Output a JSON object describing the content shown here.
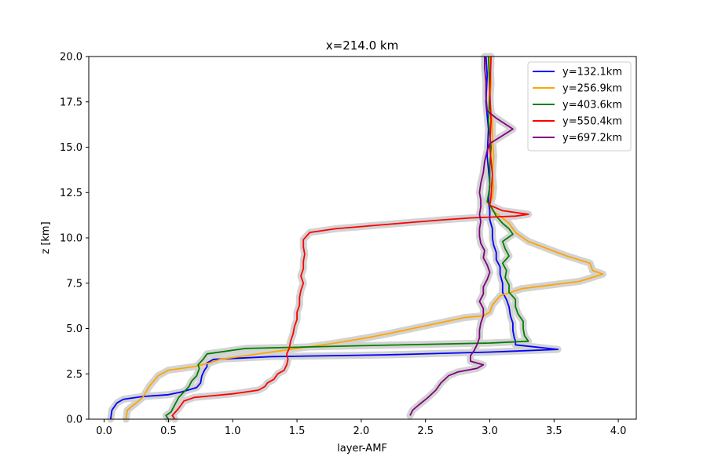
{
  "chart_data": {
    "type": "line",
    "title": "x=214.0 km",
    "xlabel": "layer-AMF",
    "ylabel": "z [km]",
    "xlim": [
      -0.12,
      4.14
    ],
    "ylim": [
      0,
      20
    ],
    "xticks": [
      0.0,
      0.5,
      1.0,
      1.5,
      2.0,
      2.5,
      3.0,
      3.5,
      4.0
    ],
    "xtick_labels": [
      "0.0",
      "0.5",
      "1.0",
      "1.5",
      "2.0",
      "2.5",
      "3.0",
      "3.5",
      "4.0"
    ],
    "yticks": [
      0.0,
      2.5,
      5.0,
      7.5,
      10.0,
      12.5,
      15.0,
      17.5,
      20.0
    ],
    "ytick_labels": [
      "0.0",
      "2.5",
      "5.0",
      "7.5",
      "10.0",
      "12.5",
      "15.0",
      "17.5",
      "20.0"
    ],
    "grid": false,
    "legend_position": "top-right",
    "uncertainty_band_color": "#d3d3d3",
    "series": [
      {
        "name": "y=132.1km",
        "color": "#0000ff",
        "points": [
          [
            0.05,
            0
          ],
          [
            0.06,
            0.5
          ],
          [
            0.1,
            0.9
          ],
          [
            0.15,
            1.1
          ],
          [
            0.3,
            1.25
          ],
          [
            0.5,
            1.35
          ],
          [
            0.6,
            1.5
          ],
          [
            0.65,
            1.6
          ],
          [
            0.72,
            1.75
          ],
          [
            0.75,
            2.0
          ],
          [
            0.76,
            2.4
          ],
          [
            0.78,
            2.7
          ],
          [
            0.8,
            2.9
          ],
          [
            0.8,
            3.1
          ],
          [
            0.85,
            3.3
          ],
          [
            1.3,
            3.45
          ],
          [
            2.2,
            3.55
          ],
          [
            3.0,
            3.7
          ],
          [
            3.53,
            3.85
          ],
          [
            3.2,
            4.1
          ],
          [
            3.2,
            4.3
          ],
          [
            3.19,
            4.5
          ],
          [
            3.18,
            4.9
          ],
          [
            3.18,
            5.3
          ],
          [
            3.16,
            5.7
          ],
          [
            3.15,
            6.2
          ],
          [
            3.13,
            6.6
          ],
          [
            3.1,
            7.0
          ],
          [
            3.1,
            7.5
          ],
          [
            3.08,
            8.0
          ],
          [
            3.08,
            8.4
          ],
          [
            3.05,
            8.8
          ],
          [
            3.05,
            9.2
          ],
          [
            3.03,
            9.6
          ],
          [
            3.02,
            10.0
          ],
          [
            3.02,
            10.5
          ],
          [
            3.0,
            11.0
          ],
          [
            3.0,
            11.5
          ],
          [
            2.99,
            12.0
          ],
          [
            3.0,
            13.0
          ],
          [
            2.98,
            14.5
          ],
          [
            2.99,
            16.0
          ],
          [
            2.97,
            17.5
          ],
          [
            2.98,
            19.0
          ],
          [
            2.97,
            20.0
          ]
        ]
      },
      {
        "name": "y=256.9km",
        "color": "#ffa500",
        "points": [
          [
            0.17,
            0
          ],
          [
            0.18,
            0.5
          ],
          [
            0.25,
            0.9
          ],
          [
            0.3,
            1.2
          ],
          [
            0.35,
            1.8
          ],
          [
            0.42,
            2.4
          ],
          [
            0.5,
            2.7
          ],
          [
            0.7,
            2.9
          ],
          [
            0.82,
            3.1
          ],
          [
            0.9,
            3.3
          ],
          [
            1.1,
            3.5
          ],
          [
            1.4,
            3.8
          ],
          [
            1.8,
            4.2
          ],
          [
            2.05,
            4.5
          ],
          [
            2.2,
            4.7
          ],
          [
            2.4,
            5.0
          ],
          [
            2.6,
            5.3
          ],
          [
            2.8,
            5.6
          ],
          [
            2.95,
            5.7
          ],
          [
            3.0,
            5.9
          ],
          [
            3.02,
            6.3
          ],
          [
            3.08,
            6.8
          ],
          [
            3.25,
            7.2
          ],
          [
            3.7,
            7.6
          ],
          [
            3.88,
            8.0
          ],
          [
            3.8,
            8.2
          ],
          [
            3.78,
            8.6
          ],
          [
            3.6,
            9.0
          ],
          [
            3.45,
            9.4
          ],
          [
            3.3,
            9.8
          ],
          [
            3.2,
            10.3
          ],
          [
            3.15,
            10.8
          ],
          [
            3.08,
            11.2
          ],
          [
            3.02,
            11.5
          ],
          [
            3.0,
            11.8
          ],
          [
            3.02,
            12.2
          ],
          [
            3.03,
            12.8
          ],
          [
            3.02,
            13.5
          ],
          [
            3.03,
            14.5
          ],
          [
            3.02,
            15.5
          ],
          [
            3.02,
            16.5
          ],
          [
            3.0,
            17.5
          ],
          [
            3.01,
            18.5
          ],
          [
            3.0,
            20.0
          ]
        ]
      },
      {
        "name": "y=403.6km",
        "color": "#008000",
        "points": [
          [
            0.5,
            0
          ],
          [
            0.48,
            0.2
          ],
          [
            0.52,
            0.4
          ],
          [
            0.55,
            0.8
          ],
          [
            0.58,
            1.2
          ],
          [
            0.62,
            1.5
          ],
          [
            0.66,
            1.8
          ],
          [
            0.68,
            2.1
          ],
          [
            0.72,
            2.4
          ],
          [
            0.74,
            2.8
          ],
          [
            0.73,
            3.0
          ],
          [
            0.77,
            3.3
          ],
          [
            0.8,
            3.6
          ],
          [
            1.1,
            3.9
          ],
          [
            2.0,
            4.05
          ],
          [
            3.0,
            4.2
          ],
          [
            3.3,
            4.3
          ],
          [
            3.27,
            4.6
          ],
          [
            3.26,
            5.0
          ],
          [
            3.26,
            5.4
          ],
          [
            3.22,
            5.8
          ],
          [
            3.2,
            6.2
          ],
          [
            3.2,
            6.6
          ],
          [
            3.15,
            7.0
          ],
          [
            3.15,
            7.4
          ],
          [
            3.12,
            7.8
          ],
          [
            3.13,
            8.2
          ],
          [
            3.1,
            8.6
          ],
          [
            3.15,
            9.0
          ],
          [
            3.12,
            9.4
          ],
          [
            3.1,
            9.8
          ],
          [
            3.18,
            10.2
          ],
          [
            3.15,
            10.5
          ],
          [
            3.1,
            10.8
          ],
          [
            3.05,
            11.2
          ],
          [
            3.02,
            11.6
          ],
          [
            2.98,
            12.0
          ],
          [
            3.0,
            12.8
          ],
          [
            3.0,
            14.0
          ],
          [
            3.01,
            15.0
          ],
          [
            2.99,
            16.5
          ],
          [
            3.0,
            18.0
          ],
          [
            2.99,
            20.0
          ]
        ]
      },
      {
        "name": "y=550.4km",
        "color": "#ff0000",
        "points": [
          [
            0.55,
            0
          ],
          [
            0.53,
            0.2
          ],
          [
            0.58,
            0.6
          ],
          [
            0.62,
            1.0
          ],
          [
            0.7,
            1.2
          ],
          [
            0.85,
            1.3
          ],
          [
            1.0,
            1.4
          ],
          [
            1.1,
            1.5
          ],
          [
            1.2,
            1.6
          ],
          [
            1.25,
            1.8
          ],
          [
            1.27,
            2.0
          ],
          [
            1.32,
            2.2
          ],
          [
            1.35,
            2.5
          ],
          [
            1.4,
            2.7
          ],
          [
            1.42,
            3.0
          ],
          [
            1.43,
            3.3
          ],
          [
            1.42,
            3.6
          ],
          [
            1.44,
            3.9
          ],
          [
            1.45,
            4.3
          ],
          [
            1.47,
            4.7
          ],
          [
            1.48,
            5.1
          ],
          [
            1.5,
            5.5
          ],
          [
            1.5,
            5.9
          ],
          [
            1.52,
            6.3
          ],
          [
            1.52,
            6.7
          ],
          [
            1.53,
            7.1
          ],
          [
            1.55,
            7.5
          ],
          [
            1.53,
            7.9
          ],
          [
            1.55,
            8.3
          ],
          [
            1.55,
            8.7
          ],
          [
            1.56,
            9.1
          ],
          [
            1.55,
            9.5
          ],
          [
            1.55,
            9.9
          ],
          [
            1.6,
            10.3
          ],
          [
            1.8,
            10.5
          ],
          [
            2.3,
            10.8
          ],
          [
            2.65,
            11.0
          ],
          [
            2.85,
            11.1
          ],
          [
            3.2,
            11.2
          ],
          [
            3.3,
            11.3
          ],
          [
            3.1,
            11.5
          ],
          [
            3.0,
            11.8
          ],
          [
            3.01,
            12.3
          ],
          [
            3.02,
            13.5
          ],
          [
            3.0,
            15.0
          ],
          [
            3.01,
            16.5
          ],
          [
            3.0,
            18.0
          ],
          [
            3.01,
            20.0
          ]
        ]
      },
      {
        "name": "y=697.2km",
        "color": "#800080",
        "points": [
          [
            2.38,
            0.2
          ],
          [
            2.4,
            0.5
          ],
          [
            2.45,
            0.8
          ],
          [
            2.52,
            1.2
          ],
          [
            2.58,
            1.6
          ],
          [
            2.62,
            2.0
          ],
          [
            2.68,
            2.4
          ],
          [
            2.75,
            2.6
          ],
          [
            2.9,
            2.8
          ],
          [
            2.95,
            3.0
          ],
          [
            2.85,
            3.2
          ],
          [
            2.85,
            3.5
          ],
          [
            2.88,
            3.8
          ],
          [
            2.9,
            4.1
          ],
          [
            2.92,
            4.5
          ],
          [
            2.92,
            4.9
          ],
          [
            2.93,
            5.3
          ],
          [
            2.95,
            5.7
          ],
          [
            2.95,
            6.1
          ],
          [
            2.92,
            6.5
          ],
          [
            2.95,
            6.9
          ],
          [
            2.95,
            7.3
          ],
          [
            2.98,
            7.7
          ],
          [
            3.0,
            8.1
          ],
          [
            2.98,
            8.5
          ],
          [
            2.95,
            8.9
          ],
          [
            2.96,
            9.3
          ],
          [
            2.93,
            9.7
          ],
          [
            2.92,
            10.1
          ],
          [
            2.92,
            10.5
          ],
          [
            2.93,
            10.9
          ],
          [
            2.92,
            11.3
          ],
          [
            2.93,
            11.7
          ],
          [
            2.93,
            12.1
          ],
          [
            2.92,
            12.5
          ],
          [
            2.93,
            13.0
          ],
          [
            2.95,
            13.6
          ],
          [
            2.96,
            14.2
          ],
          [
            2.98,
            14.8
          ],
          [
            3.0,
            15.2
          ],
          [
            3.18,
            16.0
          ],
          [
            3.05,
            16.6
          ],
          [
            2.98,
            17.0
          ],
          [
            2.97,
            17.8
          ],
          [
            2.97,
            18.6
          ],
          [
            2.96,
            19.4
          ],
          [
            2.96,
            20.0
          ]
        ]
      }
    ]
  }
}
